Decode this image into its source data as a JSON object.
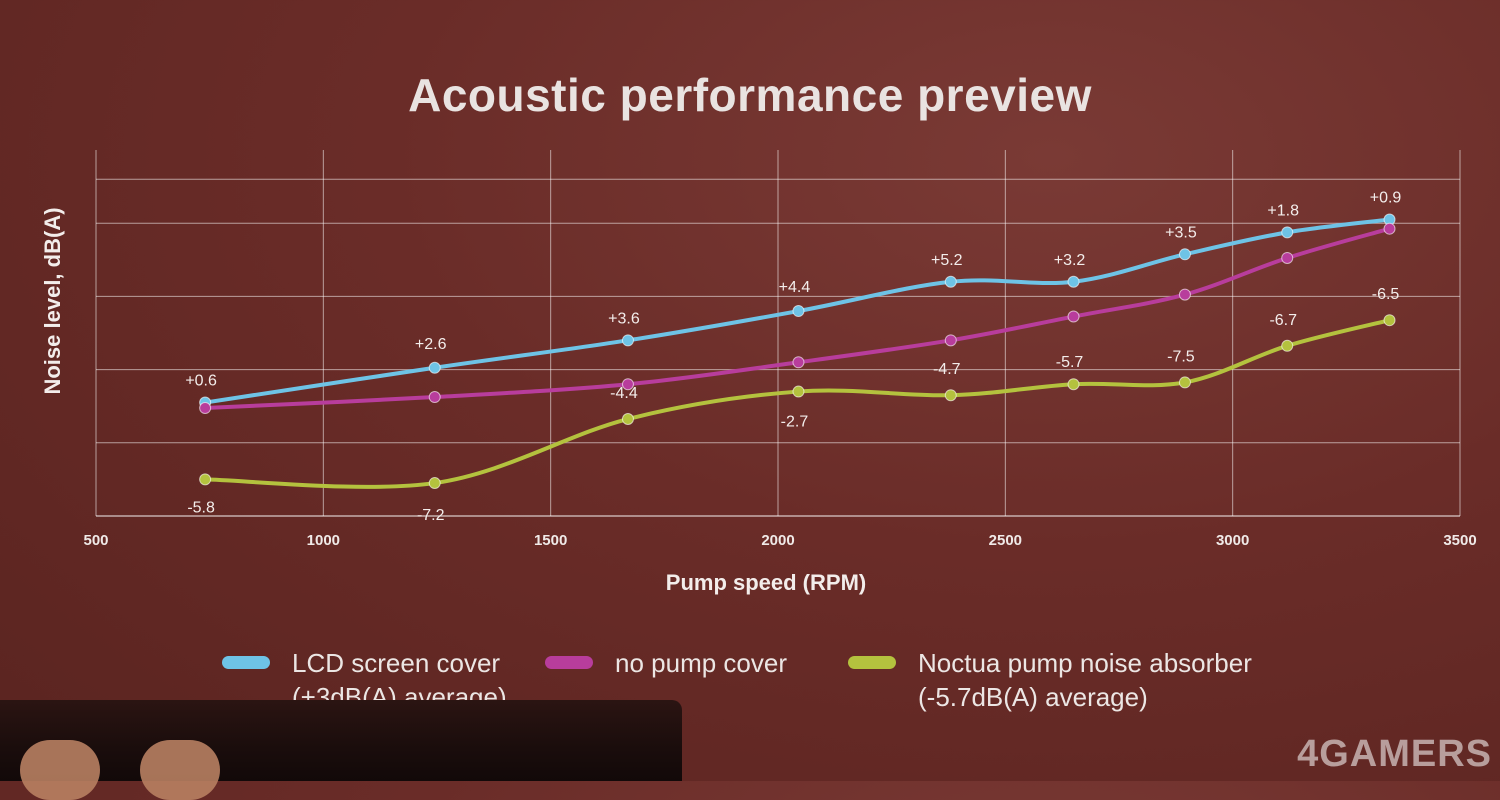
{
  "chart_data": {
    "type": "line",
    "title": "Acoustic performance preview",
    "xlabel": "Pump speed (RPM)",
    "ylabel": "Noise level, dB(A)",
    "xlim": [
      500,
      3500
    ],
    "xticks": [
      "500",
      "1000",
      "1500",
      "2000",
      "2500",
      "3000",
      "3500"
    ],
    "ylim": [
      0,
      1
    ],
    "grid": true,
    "legend_position": "bottom",
    "series": [
      {
        "name": "LCD screen cover",
        "name_line2": "(+3dB(A) average)",
        "color": "#6ec3e6",
        "x": [
          740,
          1245,
          1670,
          2045,
          2380,
          2650,
          2895,
          3120,
          3345
        ],
        "y": [
          0.31,
          0.405,
          0.48,
          0.56,
          0.64,
          0.64,
          0.715,
          0.775,
          0.81
        ],
        "labels": [
          "+0.6",
          "+2.6",
          "+3.6",
          "+4.4",
          "+5.2",
          "+3.2",
          "+3.5",
          "+1.8",
          "+0.9"
        ]
      },
      {
        "name": "no pump cover",
        "color": "#b83d9c",
        "x": [
          740,
          1245,
          1670,
          2045,
          2380,
          2650,
          2895,
          3120,
          3345
        ],
        "y": [
          0.295,
          0.325,
          0.36,
          0.42,
          0.48,
          0.545,
          0.605,
          0.705,
          0.785
        ],
        "labels": []
      },
      {
        "name": "Noctua pump noise absorber",
        "name_line2": "(-5.7dB(A) average)",
        "color": "#b4c23e",
        "x": [
          740,
          1245,
          1670,
          2045,
          2380,
          2650,
          2895,
          3120,
          3345
        ],
        "y": [
          0.1,
          0.09,
          0.265,
          0.34,
          0.33,
          0.36,
          0.365,
          0.465,
          0.535
        ],
        "labels": [
          "-5.8",
          "-7.2",
          "-4.4",
          "-2.7",
          "-4.7",
          "-5.7",
          "-7.5",
          "-6.7",
          "-6.5"
        ]
      }
    ]
  },
  "watermark": "4GAMERS"
}
